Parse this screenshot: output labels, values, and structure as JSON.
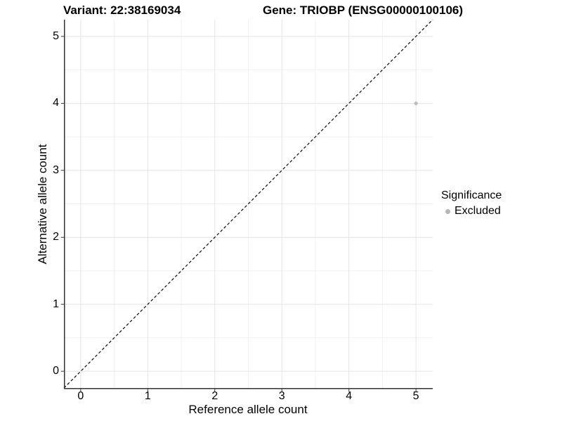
{
  "titles": {
    "variant": "Variant: 22:38169034",
    "gene": "Gene: TRIOBP (ENSG00000100106)"
  },
  "axes": {
    "x": {
      "label": "Reference allele count",
      "tick_labels": [
        "0",
        "1",
        "2",
        "3",
        "4",
        "5"
      ]
    },
    "y": {
      "label": "Alternative allele count",
      "tick_labels": [
        "0",
        "1",
        "2",
        "3",
        "4",
        "5"
      ]
    }
  },
  "legend": {
    "title": "Significance",
    "items": [
      {
        "label": "Excluded",
        "color": "#b5b5b5"
      }
    ]
  },
  "colors": {
    "background": "#ffffff",
    "axis_line": "#333333",
    "tick_mark": "#333333",
    "grid_major": "#e4e4e4",
    "grid_minor": "#f0f0f0",
    "identity_line": "#000000",
    "point": "#bdbdbd",
    "text": "#000000"
  },
  "chart_data": {
    "type": "scatter",
    "title": "Variant: 22:38169034 — Gene: TRIOBP (ENSG00000100106)",
    "xlabel": "Reference allele count",
    "ylabel": "Alternative allele count",
    "xlim": [
      -0.25,
      5.25
    ],
    "ylim": [
      -0.25,
      5.25
    ],
    "x_ticks": [
      0,
      1,
      2,
      3,
      4,
      5
    ],
    "y_ticks": [
      0,
      1,
      2,
      3,
      4,
      5
    ],
    "minor_ticks": [
      0.5,
      1.5,
      2.5,
      3.5,
      4.5
    ],
    "grid": "major at integers, minor at 0.5 steps; light gray on white; axis lines left and bottom only",
    "series": [
      {
        "name": "Excluded",
        "marker": "circle",
        "color": "#bdbdbd",
        "point_radius_px": 2.6,
        "points": [
          {
            "x": 5,
            "y": 4
          }
        ]
      }
    ],
    "reference_line": {
      "type": "identity y=x",
      "style": "dashed",
      "color": "#000000",
      "from": [
        -0.25,
        -0.25
      ],
      "to": [
        5.25,
        5.25
      ]
    },
    "legend_position": "right"
  }
}
